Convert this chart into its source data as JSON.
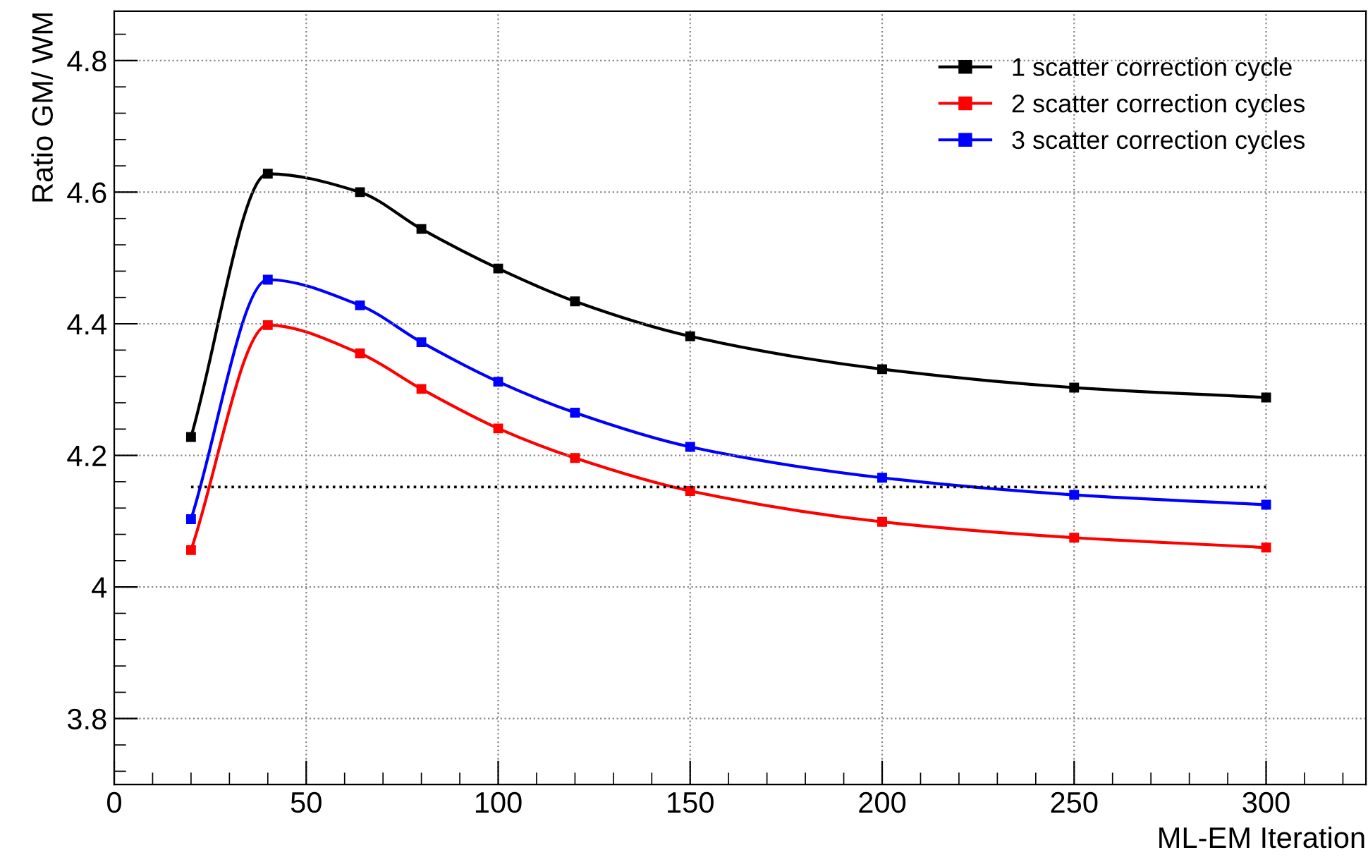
{
  "chart_data": {
    "type": "line",
    "xlabel": "ML-EM Iteration",
    "ylabel": "Ratio GM/ WM",
    "x": [
      20,
      40,
      64,
      80,
      100,
      120,
      150,
      200,
      250,
      300
    ],
    "series": [
      {
        "name": "1 scatter correction cycle",
        "color": "#000000",
        "values": [
          4.228,
          4.628,
          4.6,
          4.544,
          4.484,
          4.434,
          4.381,
          4.331,
          4.303,
          4.288
        ]
      },
      {
        "name": "2 scatter correction cycles",
        "color": "#ff0000",
        "values": [
          4.056,
          4.398,
          4.355,
          4.301,
          4.241,
          4.196,
          4.146,
          4.099,
          4.075,
          4.06
        ]
      },
      {
        "name": "3 scatter correction cycles",
        "color": "#0000ff",
        "values": [
          4.103,
          4.467,
          4.428,
          4.372,
          4.312,
          4.265,
          4.213,
          4.166,
          4.14,
          4.125
        ]
      }
    ],
    "xlim": [
      0,
      326
    ],
    "ylim": [
      3.7,
      4.875
    ],
    "xticks": [
      0,
      50,
      100,
      150,
      200,
      250,
      300
    ],
    "yticks": [
      {
        "value": 3.8,
        "label": "3.8"
      },
      {
        "value": 4.0,
        "label": "4"
      },
      {
        "value": 4.2,
        "label": "4.2"
      },
      {
        "value": 4.4,
        "label": "4.4"
      },
      {
        "value": 4.6,
        "label": "4.6"
      },
      {
        "value": 4.8,
        "label": "4.8"
      }
    ],
    "ref_lines": [
      {
        "axis": "y",
        "value": 4.152,
        "color": "#000000",
        "line_style": "dotted"
      }
    ],
    "grid": true,
    "legend": "top right",
    "marker": "square",
    "line_style": "solid"
  }
}
